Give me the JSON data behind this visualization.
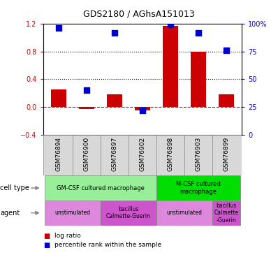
{
  "title": "GDS2180 / AGhsA151013",
  "samples": [
    "GSM76894",
    "GSM76900",
    "GSM76897",
    "GSM76902",
    "GSM76898",
    "GSM76903",
    "GSM76899"
  ],
  "log_ratio": [
    0.25,
    -0.03,
    0.18,
    -0.05,
    1.17,
    0.8,
    0.18
  ],
  "percentile_rank": [
    96,
    40,
    92,
    22,
    99,
    92,
    76
  ],
  "ylim_left": [
    -0.4,
    1.2
  ],
  "ylim_right": [
    0,
    100
  ],
  "yticks_left": [
    -0.4,
    0.0,
    0.4,
    0.8,
    1.2
  ],
  "yticks_right": [
    0,
    25,
    50,
    75,
    100
  ],
  "ytick_labels_right": [
    "0",
    "25",
    "50",
    "75",
    "100%"
  ],
  "hlines": [
    0.4,
    0.8
  ],
  "bar_color": "#cc0000",
  "dot_color": "#0000cc",
  "zero_line_color": "#cc0000",
  "hline_color": "black",
  "cell_type_row": [
    {
      "label": "GM-CSF cultured macrophage",
      "start": 0,
      "end": 4,
      "color": "#99ee99"
    },
    {
      "label": "M-CSF cultured\nmacrophage",
      "start": 4,
      "end": 7,
      "color": "#00dd00"
    }
  ],
  "agent_row": [
    {
      "label": "unstimulated",
      "start": 0,
      "end": 2,
      "color": "#dd88dd"
    },
    {
      "label": "bacillus\nCalmette-Guerin",
      "start": 2,
      "end": 4,
      "color": "#cc55cc"
    },
    {
      "label": "unstimulated",
      "start": 4,
      "end": 6,
      "color": "#dd88dd"
    },
    {
      "label": "bacillus\nCalmette\n-Guerin",
      "start": 6,
      "end": 7,
      "color": "#cc55cc"
    }
  ],
  "legend_log_ratio": "log ratio",
  "legend_percentile": "percentile rank within the sample",
  "bar_width": 0.55,
  "dot_size": 40,
  "tick_color_left": "#cc0000",
  "tick_color_right": "#0000cc",
  "sample_bg": "#d8d8d8",
  "arrow_color": "#888888"
}
